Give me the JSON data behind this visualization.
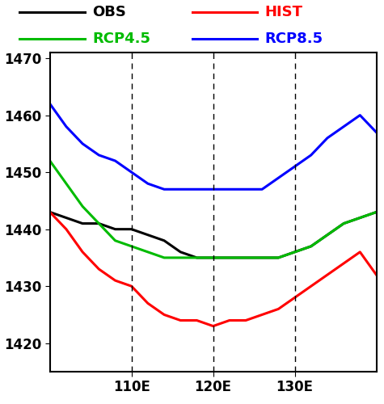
{
  "x": [
    100,
    102,
    104,
    106,
    108,
    110,
    112,
    114,
    116,
    118,
    120,
    122,
    124,
    126,
    128,
    130,
    132,
    134,
    136,
    138,
    140
  ],
  "obs": [
    1443,
    1442,
    1441,
    1441,
    1440,
    1440,
    1439,
    1438,
    1436,
    1435,
    1435,
    1435,
    1435,
    1435,
    1435,
    1436,
    1437,
    1439,
    1441,
    1442,
    1443
  ],
  "hist": [
    1443,
    1440,
    1436,
    1433,
    1431,
    1430,
    1427,
    1425,
    1424,
    1424,
    1423,
    1424,
    1424,
    1425,
    1426,
    1428,
    1430,
    1432,
    1434,
    1436,
    1432
  ],
  "rcp45": [
    1452,
    1448,
    1444,
    1441,
    1438,
    1437,
    1436,
    1435,
    1435,
    1435,
    1435,
    1435,
    1435,
    1435,
    1435,
    1436,
    1437,
    1439,
    1441,
    1442,
    1443
  ],
  "rcp85": [
    1462,
    1458,
    1455,
    1453,
    1452,
    1450,
    1448,
    1447,
    1447,
    1447,
    1447,
    1447,
    1447,
    1447,
    1449,
    1451,
    1453,
    1456,
    1458,
    1460,
    1457
  ],
  "xlim": [
    100,
    140
  ],
  "ylim": [
    1415,
    1471
  ],
  "yticks": [
    1420,
    1430,
    1440,
    1450,
    1460,
    1470
  ],
  "xticks": [
    110,
    120,
    130
  ],
  "xtick_labels": [
    "110E",
    "120E",
    "130E"
  ],
  "vlines": [
    110,
    120,
    130
  ],
  "colors": {
    "obs": "#000000",
    "hist": "#ff0000",
    "rcp45": "#00bb00",
    "rcp85": "#0000ff"
  },
  "legend": {
    "obs_label": "OBS",
    "hist_label": "HIST",
    "rcp45_label": "RCP4.5",
    "rcp85_label": "RCP8.5"
  },
  "linewidth": 2.2
}
